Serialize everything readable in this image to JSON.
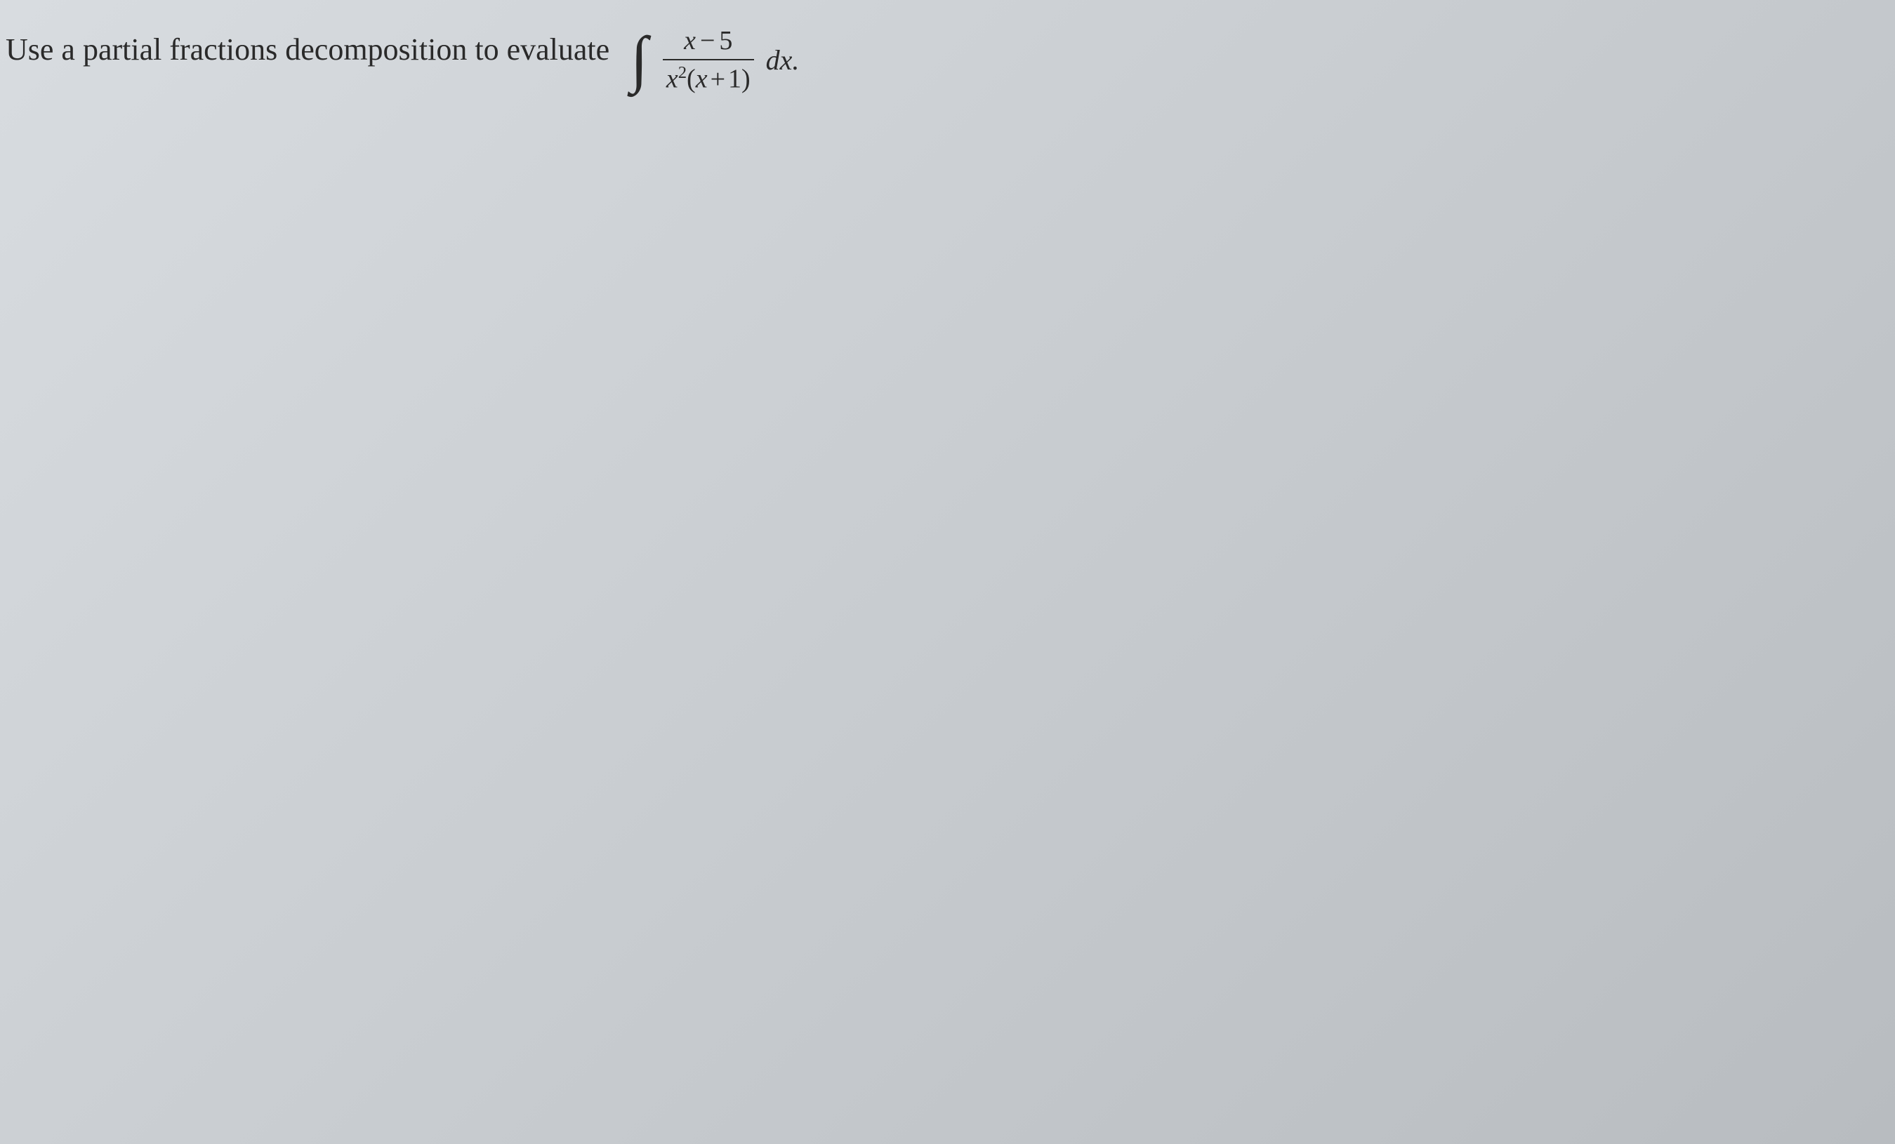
{
  "problem": {
    "instruction_text": "Use a partial fractions decomposition to evaluate",
    "integral": {
      "symbol": "∫",
      "numerator": {
        "variable": "x",
        "operator": "−",
        "constant": "5"
      },
      "denominator": {
        "base_variable": "x",
        "exponent": "2",
        "open_paren": "(",
        "inner_variable": "x",
        "inner_operator": "+",
        "inner_constant": "1",
        "close_paren": ")"
      },
      "differential": "dx."
    }
  },
  "styling": {
    "background_gradient_start": "#d8dce0",
    "background_gradient_mid": "#c8ccd0",
    "background_gradient_end": "#b8bcc0",
    "text_color": "#2a2a2a",
    "instruction_fontsize": 44,
    "integral_sign_fontsize": 90,
    "fraction_fontsize": 38,
    "dx_fontsize": 40,
    "font_family": "Times New Roman"
  }
}
